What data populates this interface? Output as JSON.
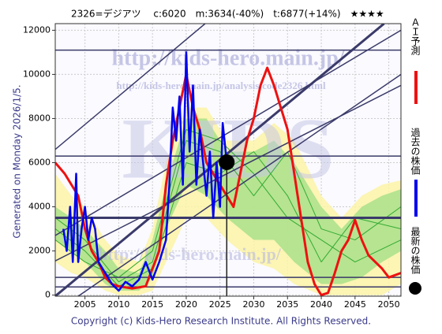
{
  "chart_data": {
    "type": "line",
    "title": "2326=デジアツ　 c:6020　m:3634(-40%)　t:6877(+14%)　★★★★",
    "watermarks": [
      "http://kids-hero.main.jp/",
      "http://kids-hero.main.jp/analysis/code2326.html",
      "KIDS"
    ],
    "side_note": "Generated on Monday 2026/1/5.",
    "footer": "Copyright (c) Kids-Hero Research Institute. All Rights Reserved.",
    "xlim": [
      2000.6,
      2051.8
    ],
    "ylim": [
      -50,
      12300
    ],
    "xticks": [
      2005,
      2010,
      2015,
      2020,
      2025,
      2030,
      2035,
      2040,
      2045,
      2050
    ],
    "yticks": [
      0,
      2000,
      4000,
      6000,
      8000,
      10000,
      12000
    ],
    "grid": true,
    "bands": [
      {
        "color": "#fbf3a6",
        "x": [
          2000.6,
          2003,
          2005,
          2008,
          2010,
          2013,
          2015,
          2017,
          2020,
          2023,
          2026,
          2030,
          2033,
          2036,
          2040,
          2043,
          2046,
          2049,
          2051.8
        ],
        "high": [
          5500,
          4500,
          4000,
          2500,
          1800,
          1500,
          3000,
          6000,
          8500,
          8500,
          7000,
          7000,
          7800,
          7000,
          4500,
          3500,
          4500,
          5000,
          5200
        ],
        "low": [
          1500,
          1000,
          800,
          200,
          0,
          0,
          200,
          1500,
          3500,
          3500,
          2500,
          1500,
          1200,
          500,
          0,
          0,
          0,
          0,
          500
        ]
      },
      {
        "color": "#a9e08a",
        "x": [
          2000.6,
          2003,
          2005,
          2008,
          2010,
          2013,
          2015,
          2017,
          2020,
          2023,
          2026,
          2030,
          2033,
          2036,
          2040,
          2043,
          2046,
          2049,
          2051.8
        ],
        "high": [
          4000,
          3500,
          3000,
          2000,
          1200,
          1000,
          2500,
          5000,
          8000,
          8000,
          6500,
          6500,
          7000,
          6000,
          4000,
          3000,
          4000,
          4500,
          4800
        ],
        "low": [
          2500,
          2000,
          1500,
          500,
          200,
          200,
          800,
          3000,
          5000,
          4500,
          3500,
          2500,
          2500,
          1500,
          500,
          500,
          800,
          1500,
          2000
        ]
      }
    ],
    "projections": [
      {
        "color": "#33aa33",
        "x": [
          2000.6,
          2005,
          2010,
          2015,
          2020,
          2025,
          2030,
          2035,
          2040,
          2045,
          2051.8
        ],
        "values": [
          3500,
          2500,
          600,
          1500,
          7000,
          6500,
          4500,
          6500,
          3000,
          2500,
          4000
        ]
      },
      {
        "color": "#33aa33",
        "x": [
          2000.6,
          2005,
          2010,
          2015,
          2020,
          2025,
          2030,
          2035,
          2040,
          2045,
          2051.8
        ],
        "values": [
          3000,
          2000,
          400,
          1200,
          6000,
          5500,
          6500,
          4500,
          1500,
          3500,
          3000
        ]
      },
      {
        "color": "#33aa33",
        "x": [
          2000.6,
          2005,
          2010,
          2015,
          2020,
          2025,
          2030,
          2035,
          2040,
          2045,
          2051.8
        ],
        "values": [
          2500,
          1500,
          800,
          2000,
          7500,
          7000,
          5500,
          3500,
          2500,
          1500,
          2500
        ]
      }
    ],
    "hlines": [
      11100,
      6300,
      3500,
      800,
      370
    ],
    "trend_lines": [
      {
        "x": [
          2000.6,
          2049.3
        ],
        "values": [
          -50,
          12300
        ]
      },
      {
        "x": [
          2000.6,
          2051.8
        ],
        "values": [
          2700,
          12000
        ]
      },
      {
        "x": [
          2000.6,
          2022.8
        ],
        "values": [
          6600,
          12300
        ]
      },
      {
        "x": [
          2000.6,
          2051.8
        ],
        "values": [
          1550,
          9500
        ]
      },
      {
        "x": [
          2004,
          2051.8
        ],
        "values": [
          -50,
          10000
        ]
      }
    ],
    "series": [
      {
        "name": "ＡＩ予測",
        "color": "#ee1111",
        "x": [
          2000.6,
          2002,
          2003,
          2004,
          2005,
          2006,
          2007,
          2008,
          2009,
          2010,
          2012,
          2014,
          2016,
          2017,
          2018,
          2019,
          2020,
          2021,
          2022,
          2023,
          2024,
          2025,
          2026,
          2027,
          2028,
          2029,
          2030,
          2031,
          2032,
          2033,
          2034,
          2035,
          2036,
          2037,
          2038,
          2039,
          2040,
          2041,
          2042,
          2043,
          2044,
          2045,
          2046,
          2047,
          2048,
          2049,
          2050,
          2051.8
        ],
        "values": [
          6000,
          5500,
          5000,
          4500,
          3000,
          2000,
          1500,
          800,
          500,
          400,
          300,
          400,
          2000,
          5000,
          7000,
          8500,
          10000,
          8500,
          7500,
          6000,
          5500,
          5000,
          4500,
          4000,
          5500,
          7000,
          8000,
          9500,
          10300,
          9500,
          8500,
          7500,
          5500,
          3500,
          1500,
          500,
          0,
          100,
          1000,
          2000,
          2500,
          3400,
          2500,
          1800,
          1500,
          1200,
          800,
          1000
        ]
      },
      {
        "name": "過去の株価",
        "color": "#0000ee",
        "x": [
          2001.8,
          2002.3,
          2002.8,
          2003.2,
          2003.7,
          2004,
          2004.5,
          2005,
          2005.5,
          2006,
          2006.5,
          2007,
          2008,
          2009,
          2010,
          2011,
          2012,
          2013,
          2014,
          2015,
          2016,
          2017,
          2017.5,
          2018,
          2018.5,
          2019,
          2019.5,
          2020,
          2020.5,
          2021,
          2021.5,
          2022,
          2022.5,
          2023,
          2023.5,
          2024,
          2024.5,
          2025,
          2025.4,
          2026
        ],
        "values": [
          3000,
          2000,
          4000,
          1500,
          5500,
          1500,
          3000,
          4000,
          2500,
          3500,
          3000,
          1500,
          1000,
          500,
          200,
          600,
          400,
          700,
          1500,
          700,
          1500,
          2500,
          5000,
          8500,
          7000,
          9000,
          5000,
          11000,
          6500,
          9500,
          5000,
          7500,
          6000,
          4500,
          6500,
          3500,
          6000,
          4000,
          7800,
          6020
        ]
      },
      {
        "name": "最新の株価",
        "color": "#000000",
        "x": [
          2026
        ],
        "values": [
          6020
        ]
      }
    ]
  }
}
